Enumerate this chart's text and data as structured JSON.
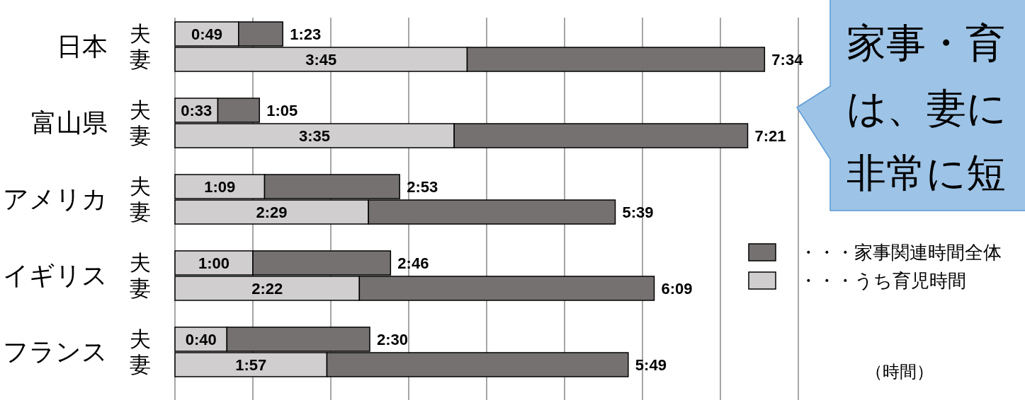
{
  "chart_data": {
    "type": "bar",
    "orientation": "horizontal",
    "stacked": true,
    "categories": [
      "夫",
      "妻",
      "夫",
      "妻",
      "夫",
      "妻",
      "夫",
      "妻",
      "夫",
      "妻"
    ],
    "series": [
      {
        "name": "・・・うち育児時間",
        "color": "#d0cece",
        "values": [
          0.8167,
          3.75,
          0.55,
          3.5833,
          1.15,
          2.4833,
          1.0,
          2.3667,
          0.6667,
          1.95
        ],
        "value_labels": [
          "0:49",
          "3:45",
          "0:33",
          "3:35",
          "1:09",
          "2:29",
          "1:00",
          "2:22",
          "0:40",
          "1:57"
        ]
      },
      {
        "name": "・・・家事関連時間全体",
        "color": "#767171",
        "values": [
          0.5667,
          3.8167,
          0.5333,
          3.7667,
          1.7333,
          3.1667,
          1.7667,
          3.7833,
          1.8333,
          3.8667
        ]
      }
    ],
    "totals": [
      "1:23",
      "7:34",
      "1:05",
      "7:21",
      "2:53",
      "5:39",
      "2:46",
      "6:09",
      "2:30",
      "5:49"
    ],
    "xlim": [
      0,
      8
    ],
    "xticks": [
      {
        "value": 0,
        "label": null
      },
      {
        "value": 1,
        "label": null
      },
      {
        "value": 2,
        "label": null
      },
      {
        "value": 3,
        "label": null
      },
      {
        "value": 4,
        "label": null
      },
      {
        "value": 5,
        "label": null
      },
      {
        "value": 6,
        "label": null
      },
      {
        "value": 7,
        "label": null
      },
      {
        "value": 8,
        "label": null
      }
    ],
    "tick_labels": "y",
    "grid": "x",
    "legend": "right",
    "xlabel": "（時間）",
    "annotations": [
      "日本",
      "富山県",
      "アメリカ",
      "イギリス",
      "フランス",
      "家事・育",
      "は、妻に",
      "非常に短"
    ]
  }
}
